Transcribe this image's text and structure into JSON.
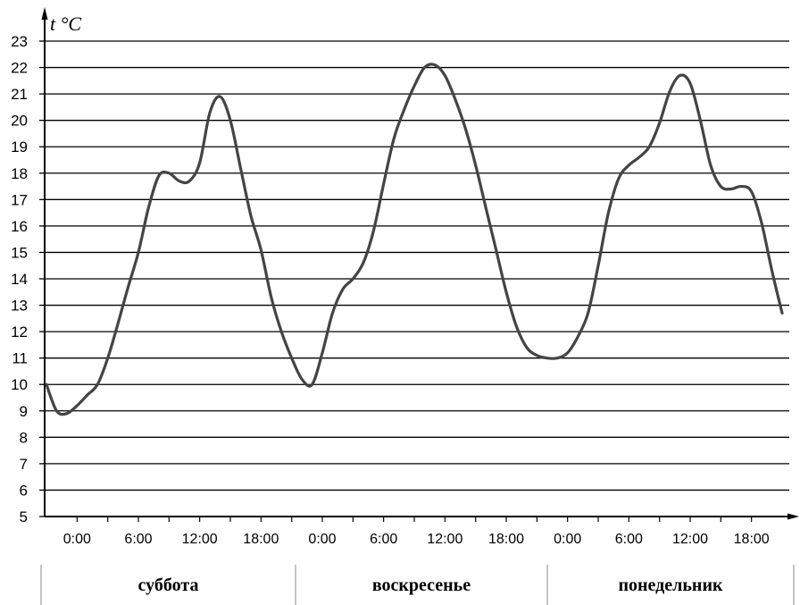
{
  "chart_data": {
    "type": "line",
    "ylabel": "t °C",
    "ylim": [
      5,
      23
    ],
    "yticks": [
      5,
      6,
      7,
      8,
      9,
      10,
      11,
      12,
      13,
      14,
      15,
      16,
      17,
      18,
      19,
      20,
      21,
      22,
      23
    ],
    "grid": true,
    "xlim": [
      -3,
      69
    ],
    "x_tick_values": [
      0,
      6,
      12,
      18,
      24,
      30,
      36,
      42,
      48,
      54,
      60,
      66
    ],
    "x_tick_labels": [
      "0:00",
      "6:00",
      "12:00",
      "18:00",
      "0:00",
      "6:00",
      "12:00",
      "18:00",
      "0:00",
      "6:00",
      "12:00",
      "18:00"
    ],
    "days": [
      {
        "label": "суббота",
        "from": -3,
        "to": 21
      },
      {
        "label": "воскресенье",
        "from": 21,
        "to": 45
      },
      {
        "label": "понедельник",
        "from": 45,
        "to": 69
      }
    ],
    "series": [
      {
        "color": "#444444",
        "points": [
          [
            -3,
            10.0
          ],
          [
            -2,
            9.0
          ],
          [
            -1,
            8.9
          ],
          [
            0,
            9.2
          ],
          [
            1,
            9.6
          ],
          [
            2,
            10.0
          ],
          [
            3,
            11.0
          ],
          [
            4,
            12.3
          ],
          [
            5,
            13.7
          ],
          [
            6,
            15.0
          ],
          [
            7,
            16.7
          ],
          [
            8,
            17.9
          ],
          [
            9,
            18.0
          ],
          [
            10,
            17.7
          ],
          [
            11,
            17.7
          ],
          [
            12,
            18.4
          ],
          [
            13,
            20.3
          ],
          [
            14,
            20.9
          ],
          [
            15,
            20.0
          ],
          [
            16,
            18.2
          ],
          [
            17,
            16.4
          ],
          [
            18,
            15.1
          ],
          [
            19,
            13.3
          ],
          [
            20,
            12.0
          ],
          [
            21,
            11.0
          ],
          [
            22,
            10.2
          ],
          [
            23,
            10.0
          ],
          [
            24,
            11.2
          ],
          [
            25,
            12.7
          ],
          [
            26,
            13.6
          ],
          [
            27,
            14.0
          ],
          [
            28,
            14.6
          ],
          [
            29,
            15.8
          ],
          [
            30,
            17.6
          ],
          [
            31,
            19.3
          ],
          [
            32,
            20.4
          ],
          [
            33,
            21.3
          ],
          [
            34,
            22.0
          ],
          [
            35,
            22.1
          ],
          [
            36,
            21.7
          ],
          [
            37,
            20.8
          ],
          [
            38,
            19.7
          ],
          [
            39,
            18.3
          ],
          [
            40,
            16.7
          ],
          [
            41,
            15.1
          ],
          [
            42,
            13.5
          ],
          [
            43,
            12.2
          ],
          [
            44,
            11.4
          ],
          [
            45,
            11.1
          ],
          [
            46,
            11.0
          ],
          [
            47,
            11.0
          ],
          [
            48,
            11.2
          ],
          [
            49,
            11.8
          ],
          [
            50,
            12.7
          ],
          [
            51,
            14.5
          ],
          [
            52,
            16.5
          ],
          [
            53,
            17.8
          ],
          [
            54,
            18.3
          ],
          [
            55,
            18.6
          ],
          [
            56,
            19.0
          ],
          [
            57,
            19.9
          ],
          [
            58,
            21.1
          ],
          [
            59,
            21.7
          ],
          [
            60,
            21.4
          ],
          [
            61,
            20.0
          ],
          [
            62,
            18.3
          ],
          [
            63,
            17.5
          ],
          [
            64,
            17.4
          ],
          [
            65,
            17.5
          ],
          [
            66,
            17.3
          ],
          [
            67,
            16.1
          ],
          [
            68,
            14.3
          ],
          [
            69,
            12.7
          ]
        ]
      }
    ]
  }
}
